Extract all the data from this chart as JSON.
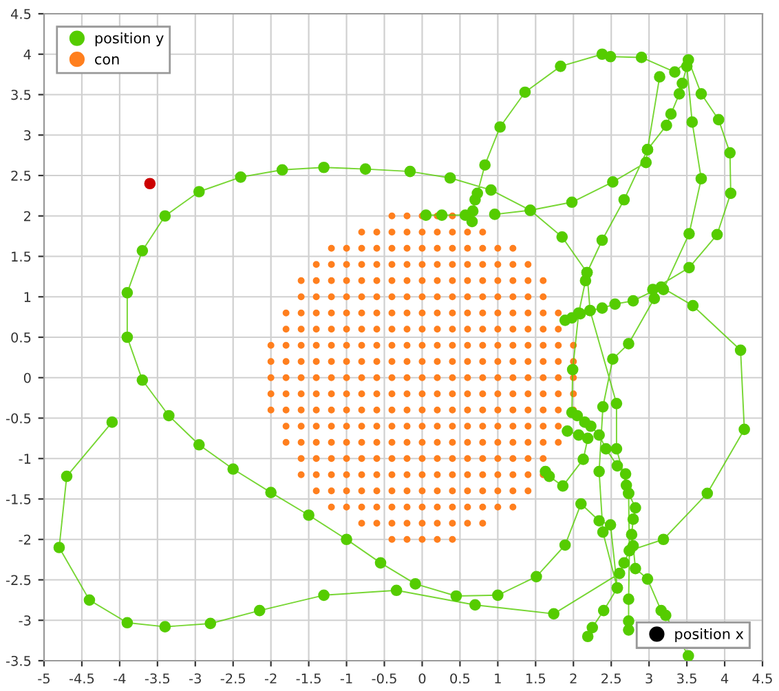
{
  "chart_data": {
    "type": "scatter",
    "xlim": [
      -5,
      4.5
    ],
    "ylim": [
      -3.5,
      4.5
    ],
    "xticks": [
      -5,
      -4.5,
      -4,
      -3.5,
      -3,
      -2.5,
      -2,
      -1.5,
      -1,
      -0.5,
      0,
      0.5,
      1,
      1.5,
      2,
      2.5,
      3,
      3.5,
      4,
      4.5
    ],
    "yticks": [
      -3.5,
      -3,
      -2.5,
      -2,
      -1.5,
      -1,
      -0.5,
      0,
      0.5,
      1,
      1.5,
      2,
      2.5,
      3,
      3.5,
      4,
      4.5
    ],
    "grid": true,
    "legend": [
      "top left",
      "top left",
      "bottom right"
    ],
    "series": [
      {
        "name": "position y",
        "type": "line",
        "marker": "circle",
        "color": "#55cc00",
        "x": [
          -4.1,
          -4.7,
          -4.8,
          -4.4,
          -3.9,
          -3.4,
          -2.8,
          -2.15,
          -1.3,
          -0.34,
          0.7,
          1.74,
          2.61,
          2.67,
          2.74,
          3.19,
          3.77,
          4.26,
          4.21,
          3.58,
          3.16,
          2.79,
          2.55,
          2.38,
          2.22,
          2.09,
          1.98,
          1.89,
          null,
          2.19,
          2.25,
          2.4,
          2.58,
          2.49,
          2.34,
          2.1,
          1.89,
          1.51,
          1.0,
          0.45,
          -0.09,
          -0.55,
          -1.0,
          -1.5,
          -2.0,
          -2.5,
          -2.95,
          -3.35,
          -3.7,
          -3.9,
          -3.9,
          -3.7,
          -3.4,
          -2.95,
          -2.4,
          -1.85,
          -1.3,
          -0.75,
          -0.16,
          0.37,
          0.91,
          1.43,
          1.85,
          2.18,
          2.16,
          2.07,
          1.99,
          1.98,
          2.05,
          2.15,
          2.23,
          2.34,
          2.43,
          2.58,
          2.69,
          2.7,
          2.73,
          2.82,
          2.79,
          2.77,
          2.79,
          2.82,
          2.98,
          3.16,
          3.22,
          3.52,
          null,
          0.05,
          0.26,
          0.57,
          0.66,
          0.67,
          0.7,
          0.73,
          0.83,
          1.03,
          1.36,
          1.83,
          2.38,
          2.49,
          2.9,
          3.34,
          3.52,
          3.69,
          3.92,
          4.07,
          4.08,
          3.9,
          3.53,
          3.05,
          3.07,
          2.73,
          2.52,
          2.39,
          2.34,
          2.39,
          2.58,
          null,
          0.96,
          1.43,
          1.98,
          2.52,
          2.96,
          2.98,
          3.23,
          3.29,
          3.4,
          3.44,
          3.5,
          3.57,
          3.69,
          3.53,
          3.19,
          null,
          3.14,
          2.98,
          2.67,
          2.38,
          2.18,
          2.22,
          2.57,
          2.57,
          2.73,
          2.74,
          2.73,
          2.73,
          2.73,
          null,
          1.63,
          1.68,
          1.86,
          2.13,
          2.19,
          2.07,
          1.92
        ],
        "values": [
          -0.55,
          -1.22,
          -2.1,
          -2.75,
          -3.03,
          -3.08,
          -3.04,
          -2.88,
          -2.69,
          -2.63,
          -2.81,
          -2.92,
          -2.42,
          -2.29,
          -2.14,
          -2.0,
          -1.43,
          -0.64,
          0.34,
          0.89,
          1.12,
          0.95,
          0.91,
          0.86,
          0.83,
          0.79,
          0.74,
          0.71,
          null,
          -3.2,
          -3.09,
          -2.88,
          -2.6,
          -1.82,
          -1.77,
          -1.56,
          -2.07,
          -2.46,
          -2.69,
          -2.7,
          -2.55,
          -2.29,
          -2.0,
          -1.7,
          -1.42,
          -1.13,
          -0.83,
          -0.47,
          -0.03,
          0.5,
          1.05,
          1.57,
          2.0,
          2.3,
          2.48,
          2.57,
          2.6,
          2.58,
          2.55,
          2.47,
          2.32,
          2.07,
          1.74,
          1.3,
          1.2,
          0.8,
          0.1,
          -0.43,
          -0.47,
          -0.55,
          -0.6,
          -0.71,
          -0.88,
          -1.09,
          -1.19,
          -1.33,
          -1.43,
          -1.61,
          -1.75,
          -1.94,
          -2.08,
          -2.36,
          -2.49,
          -2.88,
          -2.94,
          -3.44,
          null,
          2.01,
          2.01,
          2.01,
          1.93,
          2.06,
          2.2,
          2.28,
          2.63,
          3.1,
          3.53,
          3.85,
          4.0,
          3.97,
          3.96,
          3.78,
          3.93,
          3.51,
          3.19,
          2.78,
          2.28,
          1.77,
          1.36,
          1.09,
          0.98,
          0.42,
          0.23,
          -0.36,
          -1.16,
          -1.91,
          -2.6,
          null,
          2.02,
          2.07,
          2.17,
          2.42,
          2.66,
          2.82,
          3.12,
          3.26,
          3.51,
          3.64,
          3.85,
          3.16,
          2.46,
          1.78,
          1.09,
          null,
          3.72,
          2.82,
          2.2,
          1.7,
          1.3,
          0.83,
          -0.32,
          -0.88,
          -1.43,
          -2.14,
          -2.74,
          -3.01,
          -3.12,
          null,
          -1.16,
          -1.22,
          -1.34,
          -1.01,
          -0.75,
          -0.71,
          -0.66
        ]
      },
      {
        "name": "con",
        "marker": "circle",
        "color": "#ff7f1e",
        "x": [
          -0.4,
          -0.2,
          0,
          0.2,
          0.4,
          -0.8,
          -0.6,
          -0.4,
          -0.2,
          0,
          0.2,
          0.4,
          0.6,
          0.8,
          -1.2,
          -1,
          -0.8,
          -0.6,
          -0.4,
          -0.2,
          0,
          0.2,
          0.4,
          0.6,
          0.8,
          1,
          1.2,
          -1.4,
          -1.2,
          -1,
          -0.8,
          -0.6,
          -0.4,
          -0.2,
          0,
          0.2,
          0.4,
          0.6,
          0.8,
          1,
          1.2,
          1.4,
          -1.6,
          -1.4,
          -1.2,
          -1,
          -0.8,
          -0.6,
          -0.4,
          -0.2,
          0,
          0.2,
          0.4,
          0.6,
          0.8,
          1,
          1.2,
          1.4,
          1.6,
          -1.6,
          -1.4,
          -1.2,
          -1,
          -0.8,
          -0.6,
          -0.4,
          -0.2,
          0,
          0.2,
          0.4,
          0.6,
          0.8,
          1,
          1.2,
          1.4,
          1.6,
          -1.8,
          -1.6,
          -1.4,
          -1.2,
          -1,
          -0.8,
          -0.6,
          -0.4,
          -0.2,
          0,
          0.2,
          0.4,
          0.6,
          0.8,
          1,
          1.2,
          1.4,
          1.6,
          1.8,
          -1.8,
          -1.6,
          -1.4,
          -1.2,
          -1,
          -0.8,
          -0.6,
          -0.4,
          -0.2,
          0,
          0.2,
          0.4,
          0.6,
          0.8,
          1,
          1.2,
          1.4,
          1.6,
          1.8,
          -2,
          -1.8,
          -1.6,
          -1.4,
          -1.2,
          -1,
          -0.8,
          -0.6,
          -0.4,
          -0.2,
          0,
          0.2,
          0.4,
          0.6,
          0.8,
          1,
          1.2,
          1.4,
          1.6,
          1.8,
          2,
          -2,
          -1.8,
          -1.6,
          -1.4,
          -1.2,
          -1,
          -0.8,
          -0.6,
          -0.4,
          -0.2,
          0,
          0.2,
          0.4,
          0.6,
          0.8,
          1,
          1.2,
          1.4,
          1.6,
          1.8,
          2,
          -2,
          -1.8,
          -1.6,
          -1.4,
          -1.2,
          -1,
          -0.8,
          -0.6,
          -0.4,
          -0.2,
          0,
          0.2,
          0.4,
          0.6,
          0.8,
          1,
          1.2,
          1.4,
          1.6,
          1.8,
          2,
          -2,
          -1.8,
          -1.6,
          -1.4,
          -1.2,
          -1,
          -0.8,
          -0.6,
          -0.4,
          -0.2,
          0,
          0.2,
          0.4,
          0.6,
          0.8,
          1,
          1.2,
          1.4,
          1.6,
          1.8,
          2,
          -2,
          -1.8,
          -1.6,
          -1.4,
          -1.2,
          -1,
          -0.8,
          -0.6,
          -0.4,
          -0.2,
          0,
          0.2,
          0.4,
          0.6,
          0.8,
          1,
          1.2,
          1.4,
          1.6,
          1.8,
          2,
          -1.8,
          -1.6,
          -1.4,
          -1.2,
          -1,
          -0.8,
          -0.6,
          -0.4,
          -0.2,
          0,
          0.2,
          0.4,
          0.6,
          0.8,
          1,
          1.2,
          1.4,
          1.6,
          1.8,
          -1.8,
          -1.6,
          -1.4,
          -1.2,
          -1,
          -0.8,
          -0.6,
          -0.4,
          -0.2,
          0,
          0.2,
          0.4,
          0.6,
          0.8,
          1,
          1.2,
          1.4,
          1.6,
          1.8,
          -1.6,
          -1.4,
          -1.2,
          -1,
          -0.8,
          -0.6,
          -0.4,
          -0.2,
          0,
          0.2,
          0.4,
          0.6,
          0.8,
          1,
          1.2,
          1.4,
          1.6,
          -1.6,
          -1.4,
          -1.2,
          -1,
          -0.8,
          -0.6,
          -0.4,
          -0.2,
          0,
          0.2,
          0.4,
          0.6,
          0.8,
          1,
          1.2,
          1.4,
          1.6,
          -1.4,
          -1.2,
          -1,
          -0.8,
          -0.6,
          -0.4,
          -0.2,
          0,
          0.2,
          0.4,
          0.6,
          0.8,
          1,
          1.2,
          1.4,
          -1.2,
          -1,
          -0.8,
          -0.6,
          -0.4,
          -0.2,
          0,
          0.2,
          0.4,
          0.6,
          0.8,
          1,
          1.2,
          -0.8,
          -0.6,
          -0.4,
          -0.2,
          0,
          0.2,
          0.4,
          0.6,
          0.8,
          -0.4,
          -0.2,
          0,
          0.2,
          0.4
        ],
        "values": [
          2,
          2,
          2,
          2,
          2,
          1.8,
          1.8,
          1.8,
          1.8,
          1.8,
          1.8,
          1.8,
          1.8,
          1.8,
          1.6,
          1.6,
          1.6,
          1.6,
          1.6,
          1.6,
          1.6,
          1.6,
          1.6,
          1.6,
          1.6,
          1.6,
          1.6,
          1.4,
          1.4,
          1.4,
          1.4,
          1.4,
          1.4,
          1.4,
          1.4,
          1.4,
          1.4,
          1.4,
          1.4,
          1.4,
          1.4,
          1.4,
          1.2,
          1.2,
          1.2,
          1.2,
          1.2,
          1.2,
          1.2,
          1.2,
          1.2,
          1.2,
          1.2,
          1.2,
          1.2,
          1.2,
          1.2,
          1.2,
          1.2,
          1,
          1,
          1,
          1,
          1,
          1,
          1,
          1,
          1,
          1,
          1,
          1,
          1,
          1,
          1,
          1,
          1,
          0.8,
          0.8,
          0.8,
          0.8,
          0.8,
          0.8,
          0.8,
          0.8,
          0.8,
          0.8,
          0.8,
          0.8,
          0.8,
          0.8,
          0.8,
          0.8,
          0.8,
          0.8,
          0.8,
          0.6,
          0.6,
          0.6,
          0.6,
          0.6,
          0.6,
          0.6,
          0.6,
          0.6,
          0.6,
          0.6,
          0.6,
          0.6,
          0.6,
          0.6,
          0.6,
          0.6,
          0.6,
          0.6,
          0.4,
          0.4,
          0.4,
          0.4,
          0.4,
          0.4,
          0.4,
          0.4,
          0.4,
          0.4,
          0.4,
          0.4,
          0.4,
          0.4,
          0.4,
          0.4,
          0.4,
          0.4,
          0.4,
          0.4,
          0.4,
          0.2,
          0.2,
          0.2,
          0.2,
          0.2,
          0.2,
          0.2,
          0.2,
          0.2,
          0.2,
          0.2,
          0.2,
          0.2,
          0.2,
          0.2,
          0.2,
          0.2,
          0.2,
          0.2,
          0.2,
          0.2,
          0,
          0,
          0,
          0,
          0,
          0,
          0,
          0,
          0,
          0,
          0,
          0,
          0,
          0,
          0,
          0,
          0,
          0,
          0,
          0,
          0,
          -0.2,
          -0.2,
          -0.2,
          -0.2,
          -0.2,
          -0.2,
          -0.2,
          -0.2,
          -0.2,
          -0.2,
          -0.2,
          -0.2,
          -0.2,
          -0.2,
          -0.2,
          -0.2,
          -0.2,
          -0.2,
          -0.2,
          -0.2,
          -0.2,
          -0.4,
          -0.4,
          -0.4,
          -0.4,
          -0.4,
          -0.4,
          -0.4,
          -0.4,
          -0.4,
          -0.4,
          -0.4,
          -0.4,
          -0.4,
          -0.4,
          -0.4,
          -0.4,
          -0.4,
          -0.4,
          -0.4,
          -0.4,
          -0.4,
          -0.6,
          -0.6,
          -0.6,
          -0.6,
          -0.6,
          -0.6,
          -0.6,
          -0.6,
          -0.6,
          -0.6,
          -0.6,
          -0.6,
          -0.6,
          -0.6,
          -0.6,
          -0.6,
          -0.6,
          -0.6,
          -0.6,
          -0.8,
          -0.8,
          -0.8,
          -0.8,
          -0.8,
          -0.8,
          -0.8,
          -0.8,
          -0.8,
          -0.8,
          -0.8,
          -0.8,
          -0.8,
          -0.8,
          -0.8,
          -0.8,
          -0.8,
          -0.8,
          -0.8,
          -1,
          -1,
          -1,
          -1,
          -1,
          -1,
          -1,
          -1,
          -1,
          -1,
          -1,
          -1,
          -1,
          -1,
          -1,
          -1,
          -1,
          -1.2,
          -1.2,
          -1.2,
          -1.2,
          -1.2,
          -1.2,
          -1.2,
          -1.2,
          -1.2,
          -1.2,
          -1.2,
          -1.2,
          -1.2,
          -1.2,
          -1.2,
          -1.2,
          -1.2,
          -1.4,
          -1.4,
          -1.4,
          -1.4,
          -1.4,
          -1.4,
          -1.4,
          -1.4,
          -1.4,
          -1.4,
          -1.4,
          -1.4,
          -1.4,
          -1.4,
          -1.4,
          -1.6,
          -1.6,
          -1.6,
          -1.6,
          -1.6,
          -1.6,
          -1.6,
          -1.6,
          -1.6,
          -1.6,
          -1.6,
          -1.6,
          -1.6,
          -1.8,
          -1.8,
          -1.8,
          -1.8,
          -1.8,
          -1.8,
          -1.8,
          -1.8,
          -1.8,
          -2,
          -2,
          -2,
          -2,
          -2
        ]
      },
      {
        "marker": "circle",
        "color": "#cc0000",
        "x": [
          -3.6
        ],
        "values": [
          2.4
        ]
      },
      {
        "name": "position x",
        "marker": "circle",
        "color": "#000000",
        "x": [
          null
        ],
        "values": [
          null
        ]
      }
    ]
  }
}
